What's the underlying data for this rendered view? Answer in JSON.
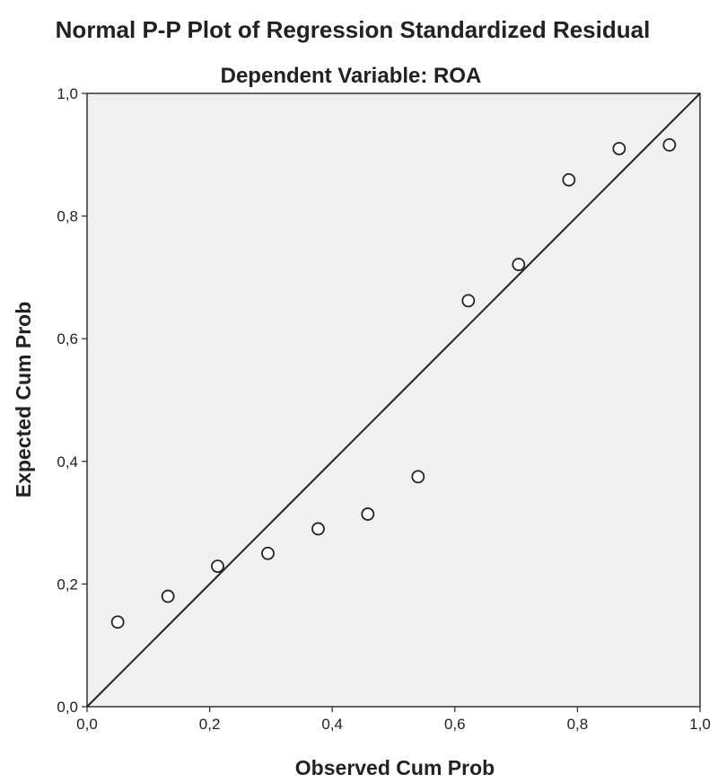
{
  "chart_data": {
    "type": "scatter",
    "title": "Normal P-P Plot of Regression Standardized Residual",
    "subtitle": "Dependent Variable: ROA",
    "xlabel": "Observed Cum Prob",
    "ylabel": "Expected Cum Prob",
    "xlim": [
      0,
      1
    ],
    "ylim": [
      0,
      1
    ],
    "x_ticks": [
      "0,0",
      "0,2",
      "0,4",
      "0,6",
      "0,8",
      "1,0"
    ],
    "y_ticks": [
      "0,0",
      "0,2",
      "0,4",
      "0,6",
      "0,8",
      "1,0"
    ],
    "grid": false,
    "reference_line": {
      "from": [
        0,
        0
      ],
      "to": [
        1,
        1
      ]
    },
    "points": [
      {
        "x": 0.05,
        "y": 0.138
      },
      {
        "x": 0.132,
        "y": 0.18
      },
      {
        "x": 0.213,
        "y": 0.229
      },
      {
        "x": 0.295,
        "y": 0.25
      },
      {
        "x": 0.377,
        "y": 0.29
      },
      {
        "x": 0.458,
        "y": 0.314
      },
      {
        "x": 0.54,
        "y": 0.375
      },
      {
        "x": 0.622,
        "y": 0.662
      },
      {
        "x": 0.704,
        "y": 0.721
      },
      {
        "x": 0.786,
        "y": 0.859
      },
      {
        "x": 0.868,
        "y": 0.91
      },
      {
        "x": 0.95,
        "y": 0.916
      }
    ],
    "colors": {
      "plot_background": "#f0f0f0",
      "frame": "#333333",
      "marker_stroke": "#222222",
      "marker_fill": "#ffffff",
      "line": "#222222",
      "text": "#222222"
    }
  }
}
